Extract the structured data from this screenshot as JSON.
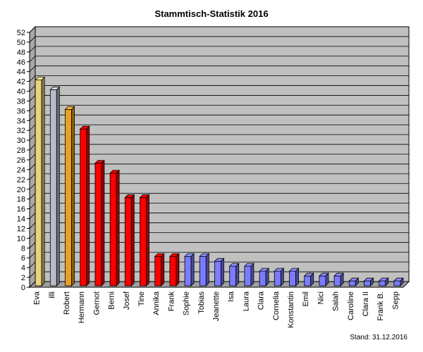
{
  "chart_data": {
    "type": "bar",
    "title": "Stammtisch-Statistik  2016",
    "categories": [
      "Eva",
      "illi",
      "Robert",
      "Hermann",
      "Gernot",
      "Berni",
      "Josef",
      "Tine",
      "Annika",
      "Frank",
      "Sophie",
      "Tobias",
      "Jeanette",
      "Isa",
      "Laura",
      "Clara",
      "Cornelia",
      "Konstantin",
      "Emil",
      "Nici",
      "Salah",
      "Caroline",
      "Clara II",
      "Frank B.",
      "Sepp"
    ],
    "values": [
      42,
      40,
      36,
      32,
      25,
      23,
      18,
      18,
      6,
      6,
      6,
      6,
      5,
      4,
      4,
      3,
      3,
      3,
      2,
      2,
      2,
      1,
      1,
      1,
      1
    ],
    "bar_colors": [
      "#e8d37a",
      "#b8bbc8",
      "#e8a020",
      "#ff0000",
      "#ff0000",
      "#ff0000",
      "#ff0000",
      "#ff0000",
      "#ff0000",
      "#ff0000",
      "#7b7bff",
      "#7b7bff",
      "#7b7bff",
      "#7b7bff",
      "#7b7bff",
      "#7b7bff",
      "#7b7bff",
      "#7b7bff",
      "#7b7bff",
      "#7b7bff",
      "#7b7bff",
      "#7b7bff",
      "#7b7bff",
      "#7b7bff",
      "#7b7bff"
    ],
    "ylim": [
      0,
      52
    ],
    "ytick_step": 2,
    "grid": true,
    "xlabel": "",
    "ylabel": "",
    "background_color": "#c0c0c0"
  },
  "footer": {
    "stand": "Stand: 31.12.2016"
  }
}
